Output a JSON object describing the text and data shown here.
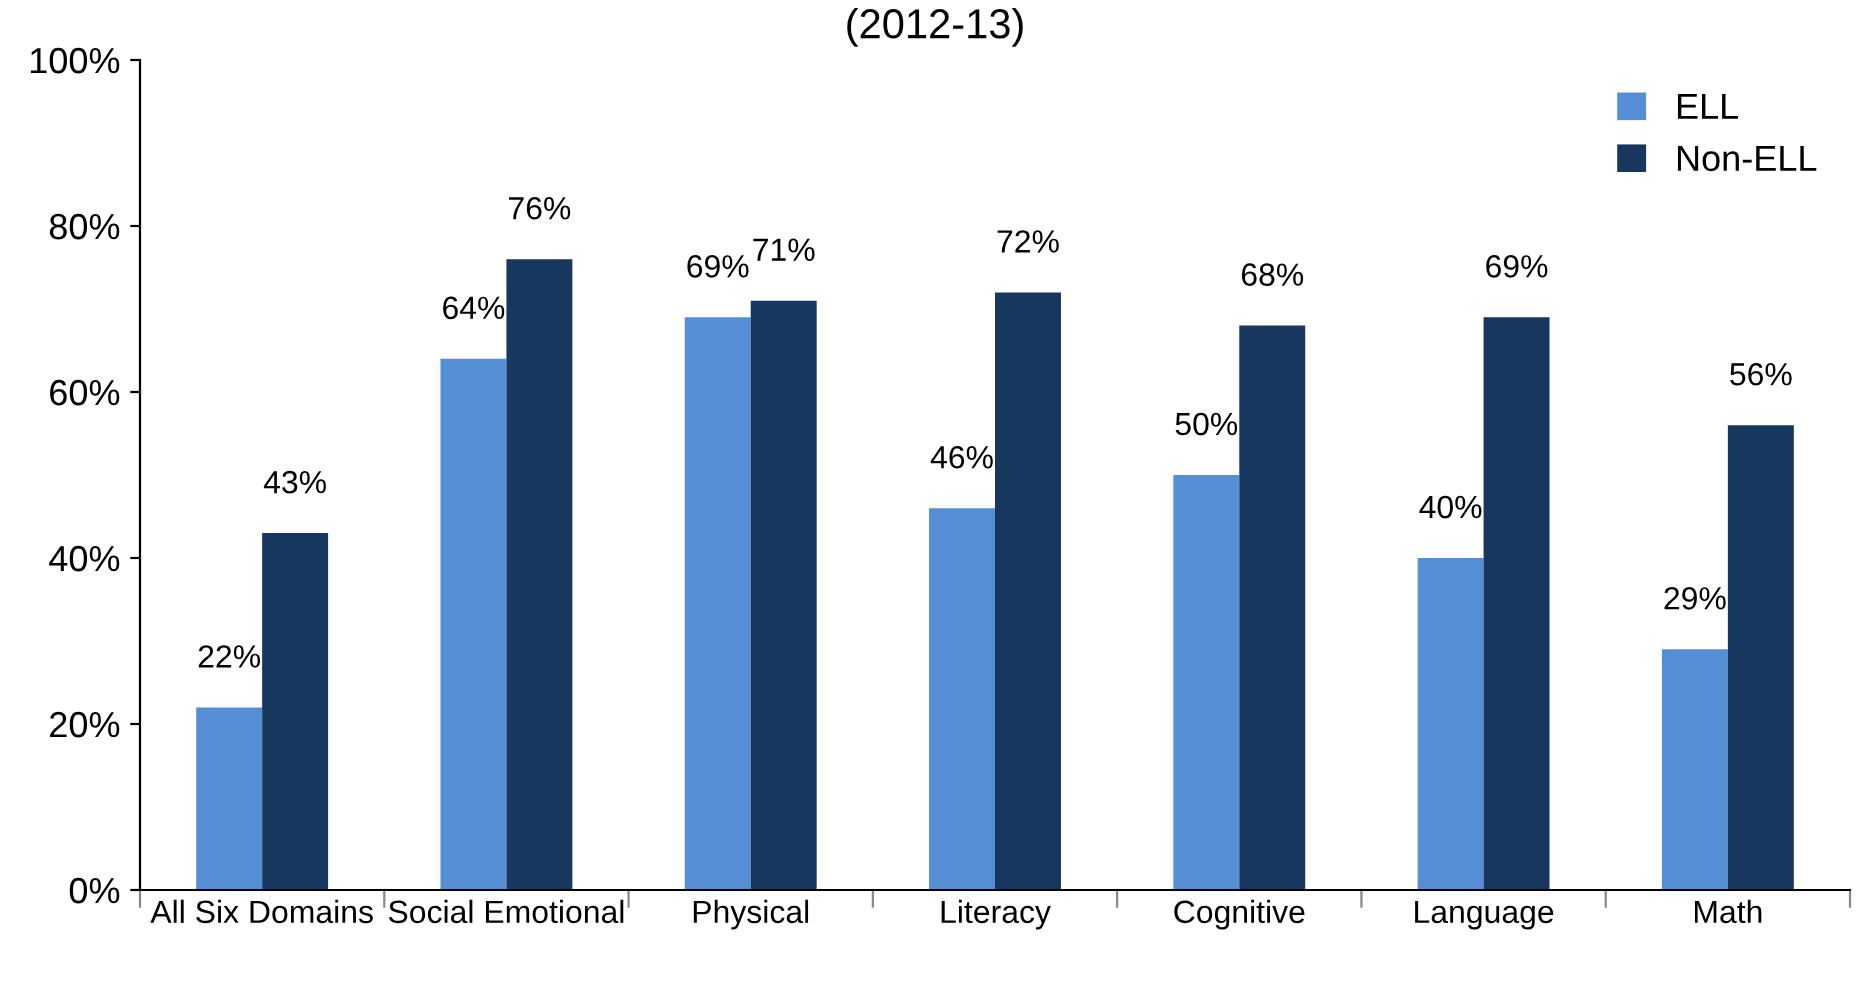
{
  "chart_data": {
    "type": "bar",
    "title": "(2012-13)",
    "categories": [
      "All Six Domains",
      "Social Emotional",
      "Physical",
      "Literacy",
      "Cognitive",
      "Language",
      "Math"
    ],
    "series": [
      {
        "name": "ELL",
        "color": "#558ed5",
        "values": [
          22,
          64,
          69,
          46,
          50,
          40,
          29
        ],
        "value_labels": [
          "22%",
          "64%",
          "69%",
          "46%",
          "50%",
          "40%",
          "29%"
        ]
      },
      {
        "name": "Non-ELL",
        "color": "#17375e",
        "values": [
          43,
          76,
          71,
          72,
          68,
          69,
          56
        ],
        "value_labels": [
          "43%",
          "76%",
          "71%",
          "72%",
          "68%",
          "69%",
          "56%"
        ]
      }
    ],
    "ylim": [
      0,
      100
    ],
    "yticks": [
      {
        "value": 0,
        "label": "0%"
      },
      {
        "value": 20,
        "label": "20%"
      },
      {
        "value": 40,
        "label": "40%"
      },
      {
        "value": 60,
        "label": "60%"
      },
      {
        "value": 80,
        "label": "80%"
      },
      {
        "value": 100,
        "label": "100%"
      }
    ],
    "grid": false,
    "legend": "top right"
  }
}
